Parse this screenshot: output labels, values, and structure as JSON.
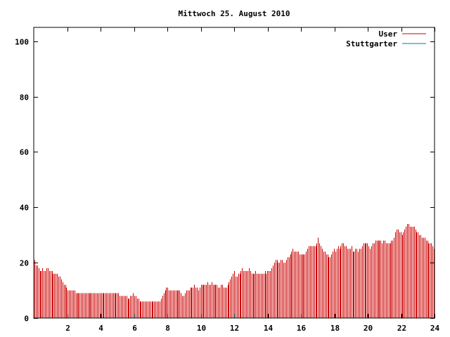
{
  "chart_data": {
    "type": "bar",
    "title": "Mittwoch 25. August 2010",
    "xlabel": "",
    "ylabel": "",
    "xlim": [
      0,
      24
    ],
    "ylim": [
      0,
      105
    ],
    "x_ticks": [
      2,
      4,
      6,
      8,
      10,
      12,
      14,
      16,
      18,
      20,
      22,
      24
    ],
    "y_ticks": [
      0,
      20,
      40,
      60,
      80,
      100
    ],
    "x_tick_labels": [
      "2",
      "4",
      "6",
      "8",
      "10",
      "12",
      "14",
      "16",
      "18",
      "20",
      "22",
      "24"
    ],
    "y_tick_labels": [
      "0",
      "20",
      "40",
      "60",
      "80",
      "100"
    ],
    "grid": false,
    "legend_position": "top-right",
    "bar_step_hours": 0.0833,
    "series": [
      {
        "name": "User",
        "color": "#cc0000",
        "values": [
          21,
          19,
          19,
          18,
          17,
          17,
          18,
          17,
          17,
          18,
          18,
          17,
          17,
          17,
          16,
          16,
          16,
          16,
          15,
          15,
          14,
          13,
          12,
          12,
          11,
          10,
          10,
          10,
          10,
          10,
          10,
          9,
          9,
          9,
          9,
          9,
          9,
          9,
          9,
          9,
          9,
          9,
          9,
          9,
          9,
          9,
          9,
          9,
          9,
          9,
          9,
          9,
          9,
          9,
          9,
          9,
          9,
          9,
          9,
          9,
          9,
          9,
          9,
          9,
          8,
          8,
          8,
          8,
          8,
          8,
          7,
          7,
          8,
          8,
          9,
          8,
          8,
          7,
          7,
          6,
          6,
          6,
          6,
          6,
          6,
          6,
          6,
          6,
          6,
          6,
          6,
          6,
          6,
          6,
          6,
          7,
          8,
          9,
          10,
          11,
          11,
          10,
          10,
          10,
          10,
          10,
          10,
          10,
          10,
          10,
          9,
          8,
          8,
          9,
          10,
          10,
          10,
          11,
          11,
          11,
          12,
          11,
          11,
          10,
          11,
          12,
          12,
          12,
          12,
          12,
          13,
          12,
          12,
          13,
          12,
          12,
          12,
          12,
          11,
          11,
          12,
          12,
          11,
          11,
          11,
          12,
          13,
          14,
          15,
          16,
          17,
          15,
          15,
          16,
          16,
          17,
          18,
          17,
          17,
          17,
          17,
          18,
          17,
          16,
          16,
          16,
          17,
          16,
          16,
          16,
          16,
          16,
          16,
          17,
          16,
          17,
          17,
          17,
          18,
          19,
          20,
          21,
          21,
          20,
          20,
          21,
          21,
          20,
          20,
          21,
          22,
          22,
          23,
          24,
          25,
          24,
          24,
          24,
          24,
          23,
          23,
          23,
          23,
          23,
          24,
          25,
          26,
          26,
          26,
          26,
          26,
          26,
          27,
          29,
          27,
          26,
          25,
          24,
          24,
          23,
          23,
          22,
          22,
          23,
          24,
          25,
          24,
          25,
          26,
          25,
          26,
          27,
          27,
          26,
          26,
          25,
          25,
          25,
          26,
          24,
          24,
          25,
          25,
          24,
          25,
          25,
          26,
          27,
          27,
          27,
          27,
          26,
          25,
          26,
          27,
          27,
          28,
          28,
          28,
          28,
          28,
          27,
          28,
          28,
          27,
          27,
          27,
          27,
          28,
          28,
          29,
          31,
          32,
          32,
          31,
          31,
          30,
          31,
          32,
          33,
          34,
          34,
          33,
          33,
          33,
          33,
          32,
          31,
          31,
          30,
          30,
          29,
          29,
          29,
          28,
          28,
          27,
          27,
          27,
          26,
          25
        ]
      },
      {
        "name": "Stuttgarter",
        "color": "#008080",
        "values": []
      }
    ]
  }
}
